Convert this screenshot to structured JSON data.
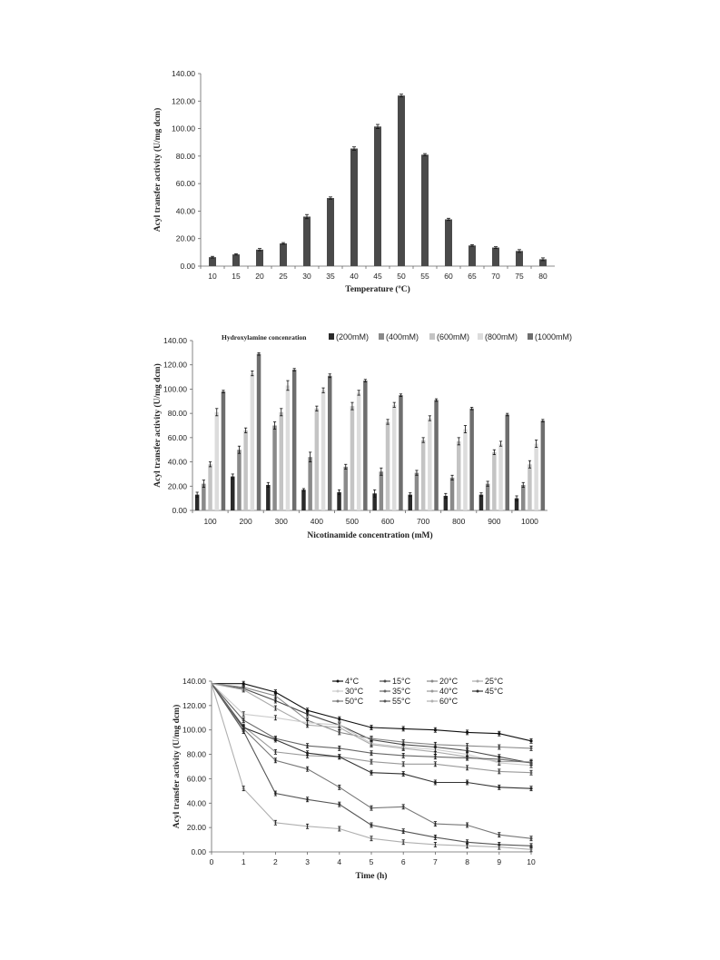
{
  "chart_data": [
    {
      "type": "bar",
      "categories": [
        "10",
        "15",
        "20",
        "25",
        "30",
        "35",
        "40",
        "45",
        "50",
        "55",
        "60",
        "65",
        "70",
        "75",
        "80"
      ],
      "values": [
        6.5,
        8.5,
        12,
        16.5,
        36,
        49.5,
        85.5,
        101.5,
        124,
        81,
        34,
        15,
        13.5,
        11,
        5
      ],
      "errors": [
        0.6,
        0.5,
        0.8,
        0.6,
        1.5,
        0.8,
        1.2,
        1.5,
        1.0,
        0.8,
        0.8,
        0.6,
        0.6,
        1.0,
        1.0
      ],
      "xlabel": "Temperature (ºC)",
      "ylabel": "Acyl transfer activity  (U/mg dcm)",
      "ylim": [
        0,
        140
      ],
      "yticks": [
        "0.00",
        "20.00",
        "40.00",
        "60.00",
        "80.00",
        "100.00",
        "120.00",
        "140.00"
      ],
      "color": "#4a4a4a"
    },
    {
      "type": "bar",
      "categories": [
        "100",
        "200",
        "300",
        "400",
        "500",
        "600",
        "700",
        "800",
        "900",
        "1000"
      ],
      "legend_title": "Hydroxylamine concenration",
      "series": [
        {
          "name": "(200mM)",
          "color": "#2a2a2a",
          "values": [
            13,
            28,
            21,
            17,
            15,
            14,
            13,
            12,
            13,
            10
          ],
          "errors": [
            2,
            2,
            2,
            1,
            2,
            3,
            1.5,
            2,
            1.5,
            2
          ]
        },
        {
          "name": "(400mM)",
          "color": "#8a8a8a",
          "values": [
            22,
            50,
            70,
            44,
            36,
            32,
            31,
            27,
            22,
            21
          ],
          "errors": [
            3,
            3,
            3,
            4,
            2,
            3,
            2,
            2,
            2,
            2
          ]
        },
        {
          "name": "(600mM)",
          "color": "#c4c4c4",
          "values": [
            38,
            66,
            81,
            84,
            86,
            73,
            58,
            57,
            48,
            38
          ],
          "errors": [
            2,
            2,
            3,
            2,
            3,
            2,
            2,
            3,
            2,
            3
          ]
        },
        {
          "name": "(800mM)",
          "color": "#dcdcdc",
          "values": [
            81,
            113,
            103,
            99,
            97,
            87,
            76,
            67,
            55,
            55
          ],
          "errors": [
            3,
            2,
            4,
            2,
            2,
            2,
            2,
            3,
            2,
            3
          ]
        },
        {
          "name": "(1000mM)",
          "color": "#6e6e6e",
          "values": [
            98,
            129,
            116,
            111,
            107,
            95,
            91,
            84,
            79,
            74
          ],
          "errors": [
            1,
            1,
            1,
            1.5,
            1,
            1,
            1,
            1,
            1,
            1
          ]
        }
      ],
      "xlabel": "Nicotinamide concentration  (mM)",
      "ylabel": "Acyl transfer activity  (U/mg dcm)",
      "ylim": [
        0,
        140
      ],
      "yticks": [
        "0.00",
        "20.00",
        "40.00",
        "60.00",
        "80.00",
        "100.00",
        "120.00",
        "140.00"
      ]
    },
    {
      "type": "line",
      "x": [
        0,
        1,
        2,
        3,
        4,
        5,
        6,
        7,
        8,
        9,
        10
      ],
      "series": [
        {
          "name": "4°C",
          "color": "#111111",
          "values": [
            138,
            138,
            131,
            116,
            109,
            102,
            101,
            100,
            98,
            97,
            91
          ]
        },
        {
          "name": "15°C",
          "color": "#4a4a4a",
          "values": [
            138,
            134,
            124,
            113,
            104,
            92,
            88,
            86,
            83,
            78,
            73
          ]
        },
        {
          "name": "20°C",
          "color": "#888888",
          "values": [
            138,
            135,
            128,
            108,
            98,
            93,
            90,
            88,
            87,
            86,
            85
          ]
        },
        {
          "name": "25°C",
          "color": "#aaaaaa",
          "values": [
            138,
            133,
            118,
            104,
            102,
            88,
            85,
            82,
            78,
            74,
            74
          ]
        },
        {
          "name": "30°C",
          "color": "#cccccc",
          "values": [
            138,
            113,
            110,
            106,
            104,
            89,
            86,
            84,
            80,
            73,
            71
          ]
        },
        {
          "name": "35°C",
          "color": "#666666",
          "values": [
            138,
            108,
            93,
            87,
            85,
            81,
            79,
            78,
            77,
            76,
            73
          ]
        },
        {
          "name": "40°C",
          "color": "#999999",
          "values": [
            138,
            103,
            82,
            79,
            78,
            74,
            72,
            72,
            69,
            66,
            65
          ]
        },
        {
          "name": "45°C",
          "color": "#333333",
          "values": [
            138,
            102,
            92,
            81,
            78,
            65,
            64,
            57,
            57,
            53,
            52
          ]
        },
        {
          "name": "50°C",
          "color": "#777777",
          "values": [
            138,
            101,
            75,
            68,
            53,
            36,
            37,
            23,
            22,
            14,
            11
          ]
        },
        {
          "name": "55°C",
          "color": "#555555",
          "values": [
            138,
            99,
            48,
            43,
            39,
            22,
            17,
            12,
            8,
            6,
            5
          ]
        },
        {
          "name": "60°C",
          "color": "#b0b0b0",
          "values": [
            138,
            52,
            24,
            21,
            19,
            11,
            8,
            6,
            5,
            4,
            2
          ]
        }
      ],
      "xlabel": "Time (h)",
      "ylabel": "Acyl transfer activity  (U/mg dcm)",
      "ylim": [
        0,
        140
      ],
      "xlim": [
        0,
        10
      ],
      "yticks": [
        "0.00",
        "20.00",
        "40.00",
        "60.00",
        "80.00",
        "100.00",
        "120.00",
        "140.00"
      ],
      "xticks": [
        "0",
        "1",
        "2",
        "3",
        "4",
        "5",
        "6",
        "7",
        "8",
        "9",
        "10"
      ]
    }
  ]
}
